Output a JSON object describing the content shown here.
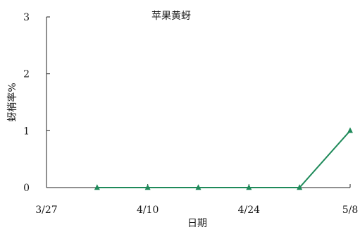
{
  "chart_data": {
    "type": "line",
    "title": "",
    "xlabel": "日期",
    "ylabel": "蚜梢率%",
    "x_tick_labels": [
      "3/27",
      "4/10",
      "4/24",
      "5/8"
    ],
    "x_tick_values": [
      "2024-03-27",
      "2024-04-10",
      "2024-04-24",
      "2024-05-08"
    ],
    "xlim": [
      "2024-03-27",
      "2024-05-08"
    ],
    "ylim": [
      0,
      3
    ],
    "y_ticks": [
      0,
      1,
      2,
      3
    ],
    "grid": false,
    "series_label_placement": "top-center",
    "series": [
      {
        "name": "苹果黄蚜",
        "color": "#1f8a5a",
        "marker": "triangle",
        "points": [
          {
            "x": "2024-04-03",
            "y": 0
          },
          {
            "x": "2024-04-10",
            "y": 0
          },
          {
            "x": "2024-04-17",
            "y": 0
          },
          {
            "x": "2024-04-24",
            "y": 0
          },
          {
            "x": "2024-05-01",
            "y": 0
          },
          {
            "x": "2024-05-08",
            "y": 1
          }
        ]
      }
    ]
  }
}
